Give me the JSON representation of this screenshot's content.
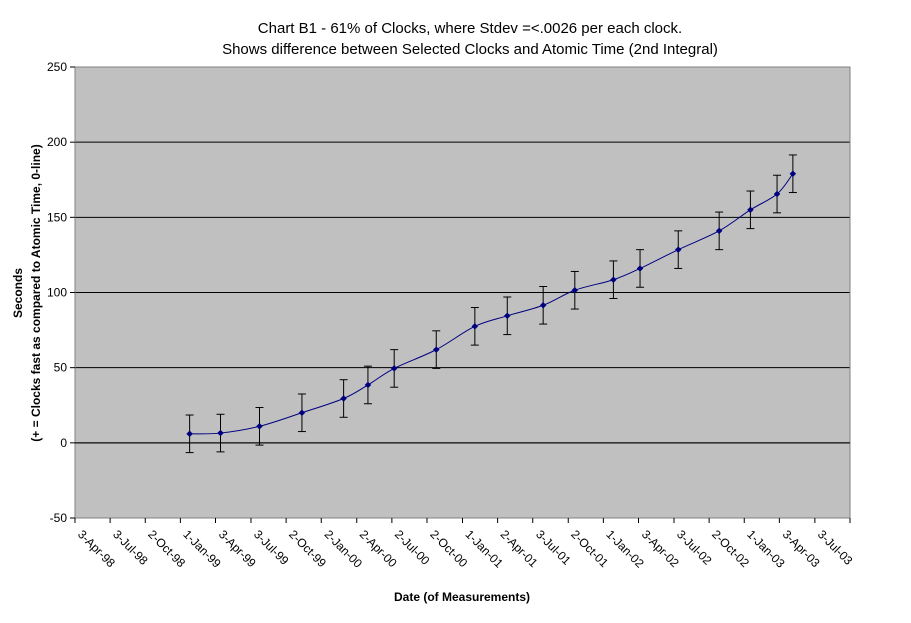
{
  "chart_data": {
    "type": "line",
    "title_lines": [
      "Chart B1 - 61% of Clocks, where Stdev =<.0026 per each clock.",
      "Shows difference between Selected Clocks and Atomic Time (2nd Integral)"
    ],
    "xlabel": "Date (of Measurements)",
    "ylabel_lines": [
      "Seconds",
      "(+ = Clocks fast as compared to Atomic Time, 0-line)"
    ],
    "ylim": [
      -50,
      250
    ],
    "y_ticks": [
      250,
      200,
      150,
      100,
      50,
      0,
      -50
    ],
    "x_tick_labels": [
      "3-Apr-98",
      "3-Jul-98",
      "2-Oct-98",
      "1-Jan-99",
      "3-Apr-99",
      "3-Jul-99",
      "2-Oct-99",
      "2-Jan-00",
      "2-Apr-00",
      "2-Jul-00",
      "2-Oct-00",
      "1-Jan-01",
      "2-Apr-01",
      "3-Jul-01",
      "2-Oct-01",
      "1-Jan-02",
      "3-Apr-02",
      "3-Jul-02",
      "2-Oct-02",
      "1-Jan-03",
      "3-Apr-03",
      "3-Jul-03"
    ],
    "x_ticks_dates": [
      "1998-01-02",
      "1998-04-03",
      "1998-07-03",
      "1998-10-02",
      "1999-01-01",
      "1999-04-03",
      "1999-07-03",
      "1999-10-02",
      "2000-01-02",
      "2000-04-02",
      "2000-07-02",
      "2000-10-02",
      "2001-01-01",
      "2001-04-02",
      "2001-07-03",
      "2001-10-02",
      "2002-01-01",
      "2002-04-03",
      "2002-07-03",
      "2002-10-02",
      "2003-01-01",
      "2003-04-03",
      "2003-07-03"
    ],
    "xlim": [
      "1998-01-02",
      "2003-07-03"
    ],
    "grid": "horizontal",
    "legend": "none",
    "background_color": "#C0C0C0",
    "series_color": "#00007F",
    "error_bar": 12.5,
    "series": [
      {
        "points": [
          {
            "x": "1998-10-26",
            "y": 6
          },
          {
            "x": "1999-01-14",
            "y": 6.5
          },
          {
            "x": "1999-04-25",
            "y": 11
          },
          {
            "x": "1999-08-13",
            "y": 20
          },
          {
            "x": "1999-11-29",
            "y": 29.5
          },
          {
            "x": "2000-01-31",
            "y": 38.5
          },
          {
            "x": "2000-04-08",
            "y": 49.5
          },
          {
            "x": "2000-07-26",
            "y": 62
          },
          {
            "x": "2000-11-03",
            "y": 77.5
          },
          {
            "x": "2001-01-26",
            "y": 84.5
          },
          {
            "x": "2001-04-29",
            "y": 91.5
          },
          {
            "x": "2001-07-20",
            "y": 101.5
          },
          {
            "x": "2001-10-28",
            "y": 108.5
          },
          {
            "x": "2002-01-05",
            "y": 116
          },
          {
            "x": "2002-04-14",
            "y": 128.5
          },
          {
            "x": "2002-07-29",
            "y": 141
          },
          {
            "x": "2002-10-18",
            "y": 155
          },
          {
            "x": "2002-12-26",
            "y": 165.5
          },
          {
            "x": "2003-02-05",
            "y": 179
          }
        ]
      }
    ]
  }
}
